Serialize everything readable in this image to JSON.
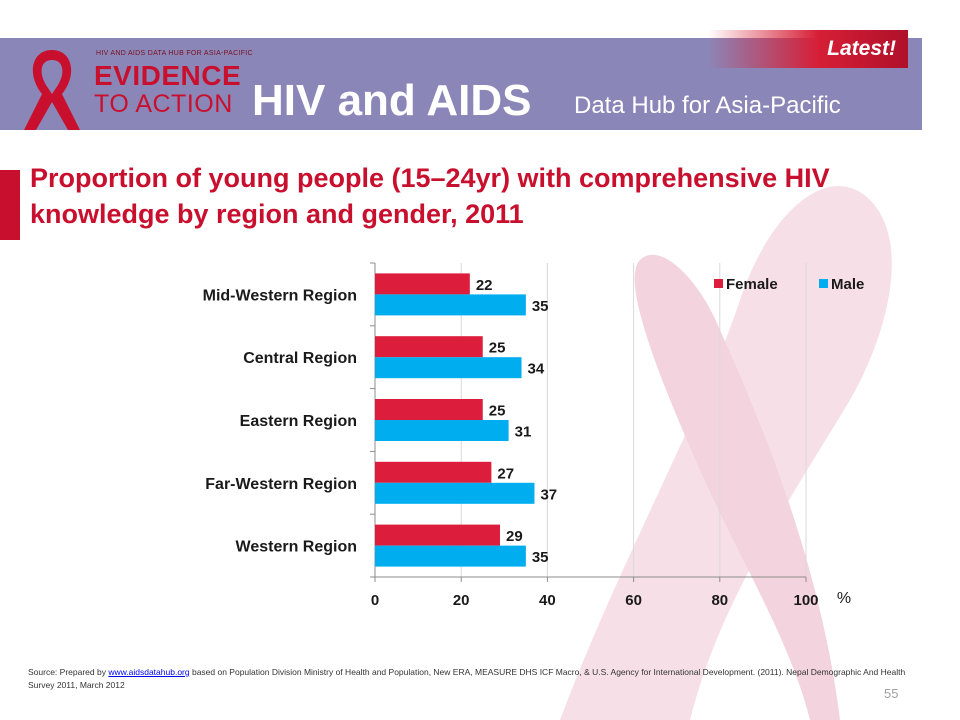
{
  "header": {
    "latest_label": "Latest!",
    "logo_small_text": "HIV AND AIDS DATA HUB FOR ASIA-PACIFIC",
    "logo_line1": "EVIDENCE",
    "logo_line2": "TO ACTION",
    "title": "HIV and AIDS",
    "subtitle": "Data Hub for Asia-Pacific"
  },
  "slide": {
    "title": "Proportion of young people (15–24yr) with comprehensive HIV knowledge by region and gender, 2011",
    "page_number": "55"
  },
  "source": {
    "prefix": "Source: Prepared by ",
    "link_text": "www.aidsdatahub.org",
    "suffix": " based on Population Division Ministry of Health and Population, New ERA, MEASURE DHS ICF Macro, & U.S. Agency for International Development. (2011). Nepal Demographic And Health Survey 2011, March 2012"
  },
  "colors": {
    "female": "#dc1e3c",
    "male": "#00aeef",
    "brand_red": "#c8102e",
    "header_band": "#8b86b8"
  },
  "chart_data": {
    "type": "bar",
    "orientation": "horizontal",
    "categories": [
      "Mid-Western Region",
      "Central Region",
      "Eastern Region",
      "Far-Western Region",
      "Western Region"
    ],
    "series": [
      {
        "name": "Female",
        "values": [
          22,
          25,
          25,
          27,
          29
        ]
      },
      {
        "name": "Male",
        "values": [
          35,
          34,
          31,
          37,
          35
        ]
      }
    ],
    "xlim": [
      0,
      100
    ],
    "xticks": [
      0,
      20,
      40,
      60,
      80,
      100
    ],
    "xlabel": "%",
    "grid": true,
    "legend_position": "top-right"
  }
}
